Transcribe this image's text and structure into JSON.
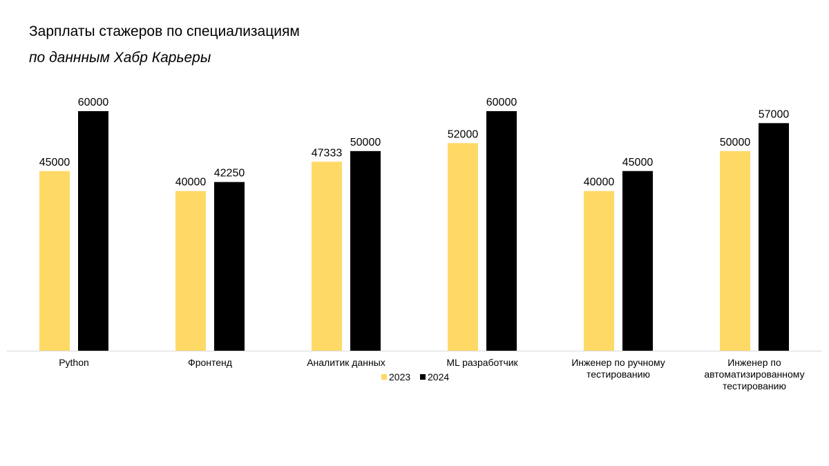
{
  "chart_data": {
    "type": "bar",
    "title": "Зарплаты стажеров по специализациям",
    "subtitle": "по даннным Хабр Карьеры",
    "xlabel": "",
    "ylabel": "",
    "ylim": [
      0,
      60000
    ],
    "grid": false,
    "legend_position": "bottom",
    "categories": [
      "Python",
      "Фронтенд",
      "Аналитик данных",
      "ML разработчик",
      "Инженер по ручному тестированию",
      "Инженер по автоматизированному тестированию"
    ],
    "category_lines": [
      [
        "Python"
      ],
      [
        "Фронтенд"
      ],
      [
        "Аналитик данных"
      ],
      [
        "ML разработчик"
      ],
      [
        "Инженер по ручному",
        "тестированию"
      ],
      [
        "Инженер по",
        "автоматизированному",
        "тестированию"
      ]
    ],
    "series": [
      {
        "name": "2023",
        "color": "#FFD966",
        "values": [
          45000,
          40000,
          47333,
          52000,
          40000,
          50000
        ]
      },
      {
        "name": "2024",
        "color": "#000000",
        "values": [
          60000,
          42250,
          50000,
          60000,
          45000,
          57000
        ]
      }
    ]
  }
}
